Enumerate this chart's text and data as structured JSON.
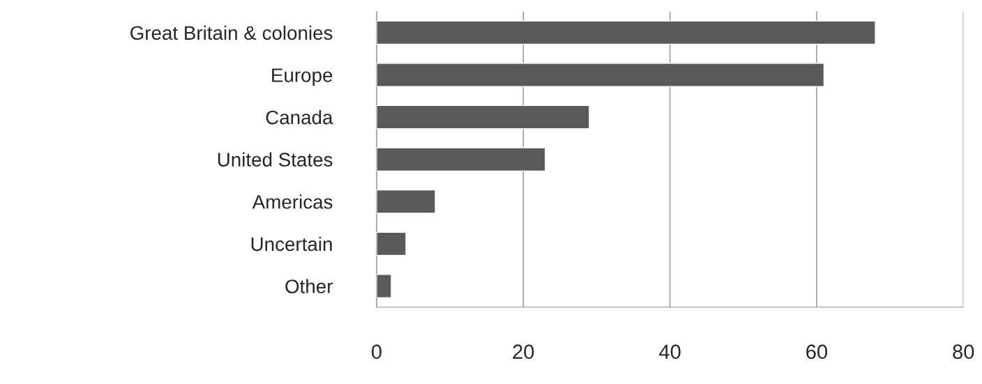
{
  "chart_data": {
    "type": "bar",
    "orientation": "horizontal",
    "categories": [
      "Great Britain & colonies",
      "Europe",
      "Canada",
      "United States",
      "Americas",
      "Uncertain",
      "Other"
    ],
    "values": [
      68,
      61,
      29,
      23,
      8,
      4,
      2
    ],
    "color": "#5a5a5a",
    "xlim": [
      0,
      80
    ],
    "xticks": [
      0,
      20,
      40,
      60,
      80
    ],
    "grid": "x",
    "legend": false
  }
}
